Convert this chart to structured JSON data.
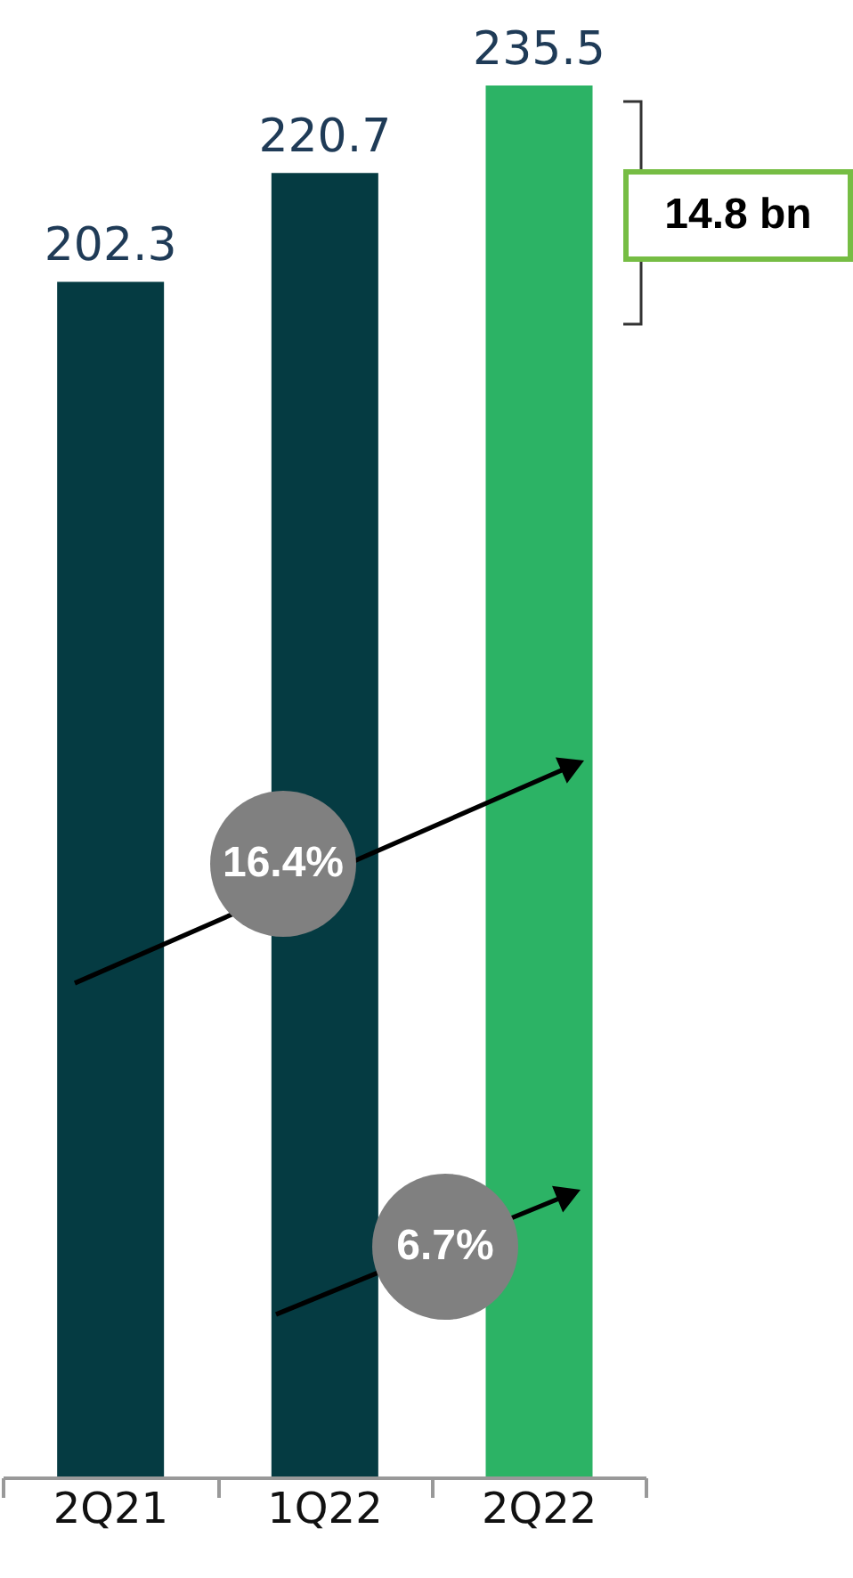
{
  "chart_data": {
    "type": "bar",
    "categories": [
      "2Q21",
      "1Q22",
      "2Q22"
    ],
    "values": [
      202.3,
      220.7,
      235.5
    ],
    "colors": [
      "#053b42",
      "#053b42",
      "#2cb365"
    ],
    "data_labels": true,
    "tick_labels": "x",
    "annotations": [
      "16.4%",
      "6.7%",
      "14.8 bn"
    ]
  }
}
